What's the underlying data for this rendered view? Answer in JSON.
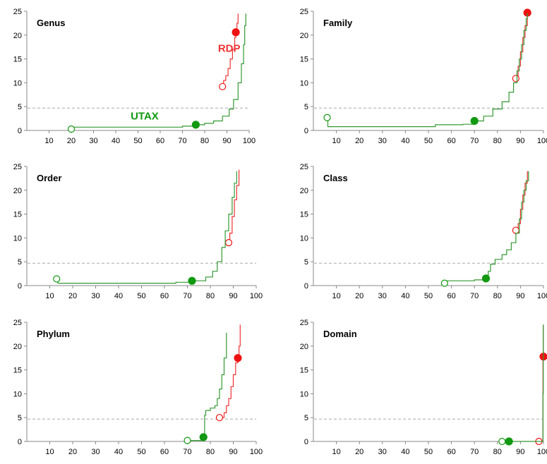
{
  "colors": {
    "utax": "#339933",
    "rdp": "#ee3333",
    "utax_marker": "#119911",
    "rdp_marker": "#ee1111",
    "reference_line": "#a8a8a8",
    "axis": "#888888"
  },
  "chart_data": [
    {
      "type": "line",
      "title": "Genus",
      "xlim": [
        0,
        100
      ],
      "ylim": [
        0,
        25
      ],
      "x_ticks": [
        10,
        20,
        30,
        40,
        50,
        60,
        70,
        80,
        90,
        100
      ],
      "y_ticks": [
        0,
        5,
        10,
        15,
        20,
        25
      ],
      "reference_y": 4.7,
      "series_labels": [
        {
          "text": "RDP",
          "series": "RDP",
          "at": [
            91,
            16.5
          ]
        },
        {
          "text": "UTAX",
          "series": "UTAX",
          "at": [
            53,
            2.3
          ]
        }
      ],
      "series": [
        {
          "name": "RDP",
          "points": [
            [
              88,
              9.2
            ],
            [
              88.5,
              10.5
            ],
            [
              89.5,
              11.5
            ],
            [
              90.5,
              13.0
            ],
            [
              91.5,
              15.0
            ],
            [
              92.5,
              17.0
            ],
            [
              93.5,
              19.5
            ],
            [
              94,
              20.6
            ],
            [
              94.5,
              22.5
            ],
            [
              95,
              24.5
            ]
          ],
          "markers": [
            {
              "x": 88,
              "y": 9.2,
              "filled": false
            },
            {
              "x": 94,
              "y": 20.6,
              "filled": true
            }
          ]
        },
        {
          "name": "UTAX",
          "points": [
            [
              20,
              0.3
            ],
            [
              20.3,
              0.7
            ],
            [
              40,
              0.7
            ],
            [
              60,
              0.7
            ],
            [
              70,
              0.9
            ],
            [
              76,
              1.2
            ],
            [
              80,
              1.5
            ],
            [
              84,
              2.0
            ],
            [
              88,
              3.0
            ],
            [
              91,
              4.5
            ],
            [
              93,
              6.5
            ],
            [
              95,
              10.0
            ],
            [
              96.5,
              14.0
            ],
            [
              97.5,
              18.0
            ],
            [
              98,
              22.0
            ],
            [
              98.5,
              24.5
            ]
          ],
          "markers": [
            {
              "x": 20,
              "y": 0.3,
              "filled": false
            },
            {
              "x": 76,
              "y": 1.2,
              "filled": true
            }
          ]
        }
      ]
    },
    {
      "type": "line",
      "title": "Family",
      "xlim": [
        0,
        100
      ],
      "ylim": [
        0,
        25
      ],
      "x_ticks": [
        10,
        20,
        30,
        40,
        50,
        60,
        70,
        80,
        90,
        100
      ],
      "y_ticks": [
        0,
        5,
        10,
        15,
        20,
        25
      ],
      "reference_y": 4.7,
      "series": [
        {
          "name": "RDP",
          "points": [
            [
              88,
              10.9
            ],
            [
              89,
              13.5
            ],
            [
              90,
              16.5
            ],
            [
              91,
              19.5
            ],
            [
              92,
              22.0
            ],
            [
              93,
              24.7
            ]
          ],
          "markers": [
            {
              "x": 88,
              "y": 10.9,
              "filled": false
            },
            {
              "x": 93,
              "y": 24.7,
              "filled": true
            }
          ]
        },
        {
          "name": "UTAX",
          "points": [
            [
              6,
              2.7
            ],
            [
              6.3,
              0.8
            ],
            [
              30,
              0.8
            ],
            [
              52,
              0.8
            ],
            [
              53,
              1.2
            ],
            [
              65,
              1.3
            ],
            [
              70,
              2.0
            ],
            [
              74,
              3.0
            ],
            [
              78,
              4.5
            ],
            [
              82,
              6.0
            ],
            [
              85,
              8.0
            ],
            [
              87,
              10.0
            ],
            [
              88.5,
              12.5
            ],
            [
              89.5,
              15.0
            ],
            [
              90.5,
              18.0
            ],
            [
              91.5,
              21.0
            ],
            [
              92.5,
              23.5
            ],
            [
              93,
              24.6
            ]
          ],
          "markers": [
            {
              "x": 6,
              "y": 2.7,
              "filled": false
            },
            {
              "x": 70,
              "y": 2.0,
              "filled": true
            }
          ]
        }
      ]
    },
    {
      "type": "line",
      "title": "Order",
      "xlim": [
        0,
        100
      ],
      "ylim": [
        0,
        25
      ],
      "x_ticks": [
        10,
        20,
        30,
        40,
        50,
        60,
        70,
        80,
        90,
        100
      ],
      "y_ticks": [
        0,
        5,
        10,
        15,
        20,
        25
      ],
      "reference_y": 4.7,
      "series": [
        {
          "name": "RDP",
          "points": [
            [
              88,
              9.0
            ],
            [
              88.5,
              11.0
            ],
            [
              89.5,
              14.5
            ],
            [
              90.5,
              18.0
            ],
            [
              91.5,
              21.0
            ],
            [
              92.5,
              24.3
            ]
          ],
          "markers": [
            {
              "x": 88,
              "y": 9.0,
              "filled": false
            }
          ]
        },
        {
          "name": "UTAX",
          "points": [
            [
              13,
              1.4
            ],
            [
              13.5,
              0.5
            ],
            [
              30,
              0.5
            ],
            [
              55,
              0.5
            ],
            [
              65,
              0.7
            ],
            [
              72,
              1.0
            ],
            [
              78,
              1.8
            ],
            [
              81,
              3.0
            ],
            [
              83,
              5.0
            ],
            [
              85,
              8.0
            ],
            [
              86.5,
              11.5
            ],
            [
              88,
              15.0
            ],
            [
              89.5,
              18.5
            ],
            [
              90.5,
              21.5
            ],
            [
              91.5,
              24.0
            ]
          ],
          "markers": [
            {
              "x": 13,
              "y": 1.4,
              "filled": false
            },
            {
              "x": 72,
              "y": 1.0,
              "filled": true
            }
          ]
        }
      ]
    },
    {
      "type": "line",
      "title": "Class",
      "xlim": [
        0,
        100
      ],
      "ylim": [
        0,
        25
      ],
      "x_ticks": [
        10,
        20,
        30,
        40,
        50,
        60,
        70,
        80,
        90,
        100
      ],
      "y_ticks": [
        0,
        5,
        10,
        15,
        20,
        25
      ],
      "reference_y": 4.7,
      "series": [
        {
          "name": "RDP",
          "points": [
            [
              88,
              11.6
            ],
            [
              89,
              13.0
            ],
            [
              90,
              16.0
            ],
            [
              91,
              19.0
            ],
            [
              92,
              21.5
            ],
            [
              93,
              24.0
            ]
          ],
          "markers": [
            {
              "x": 88,
              "y": 11.6,
              "filled": false
            }
          ]
        },
        {
          "name": "UTAX",
          "points": [
            [
              57,
              0.5
            ],
            [
              57.5,
              1.0
            ],
            [
              70,
              1.2
            ],
            [
              75,
              1.5
            ],
            [
              76,
              3.0
            ],
            [
              77,
              4.5
            ],
            [
              79,
              5.5
            ],
            [
              82,
              6.5
            ],
            [
              84,
              7.5
            ],
            [
              86,
              9.0
            ],
            [
              88,
              11.0
            ],
            [
              89.5,
              14.0
            ],
            [
              90.5,
              17.5
            ],
            [
              91.5,
              20.0
            ],
            [
              92.5,
              22.0
            ],
            [
              93.5,
              24.0
            ]
          ],
          "markers": [
            {
              "x": 57,
              "y": 0.5,
              "filled": false
            },
            {
              "x": 75,
              "y": 1.5,
              "filled": true
            }
          ]
        }
      ]
    },
    {
      "type": "line",
      "title": "Phylum",
      "xlim": [
        0,
        100
      ],
      "ylim": [
        0,
        25
      ],
      "x_ticks": [
        10,
        20,
        30,
        40,
        50,
        60,
        70,
        80,
        90,
        100
      ],
      "y_ticks": [
        0,
        5,
        10,
        15,
        20,
        25
      ],
      "reference_y": 4.7,
      "series": [
        {
          "name": "RDP",
          "points": [
            [
              84,
              5.0
            ],
            [
              86,
              6.0
            ],
            [
              87,
              7.5
            ],
            [
              88,
              9.0
            ],
            [
              89,
              11.5
            ],
            [
              90,
              14.0
            ],
            [
              91,
              16.5
            ],
            [
              92,
              17.5
            ],
            [
              92.5,
              20.0
            ],
            [
              93,
              24.5
            ]
          ],
          "markers": [
            {
              "x": 84,
              "y": 5.0,
              "filled": false
            },
            {
              "x": 92,
              "y": 17.5,
              "filled": true
            }
          ]
        },
        {
          "name": "UTAX",
          "points": [
            [
              70,
              0.2
            ],
            [
              77,
              0.9
            ],
            [
              77.5,
              5.5
            ],
            [
              78,
              6.5
            ],
            [
              80,
              7.0
            ],
            [
              82,
              7.5
            ],
            [
              83,
              9.0
            ],
            [
              84,
              11.0
            ],
            [
              85,
              14.0
            ],
            [
              86,
              17.5
            ],
            [
              87,
              22.8
            ]
          ],
          "markers": [
            {
              "x": 70,
              "y": 0.2,
              "filled": false
            },
            {
              "x": 77,
              "y": 0.9,
              "filled": true
            }
          ]
        }
      ]
    },
    {
      "type": "line",
      "title": "Domain",
      "xlim": [
        0,
        100
      ],
      "ylim": [
        0,
        25
      ],
      "x_ticks": [
        10,
        20,
        30,
        40,
        50,
        60,
        70,
        80,
        90,
        100
      ],
      "y_ticks": [
        0,
        5,
        10,
        15,
        20,
        25
      ],
      "reference_y": 4.7,
      "series": [
        {
          "name": "RDP",
          "points": [
            [
              98,
              0
            ],
            [
              99.7,
              0
            ],
            [
              99.8,
              18.0
            ],
            [
              99.9,
              24.5
            ]
          ],
          "markers": [
            {
              "x": 98,
              "y": 0,
              "filled": false
            },
            {
              "x": 100,
              "y": 17.8,
              "filled": true
            }
          ]
        },
        {
          "name": "UTAX",
          "points": [
            [
              82,
              0
            ],
            [
              99.7,
              0
            ],
            [
              99.8,
              10.0
            ],
            [
              99.9,
              24.5
            ]
          ],
          "markers": [
            {
              "x": 82,
              "y": 0,
              "filled": false
            },
            {
              "x": 85,
              "y": 0,
              "filled": true
            }
          ]
        }
      ]
    }
  ]
}
